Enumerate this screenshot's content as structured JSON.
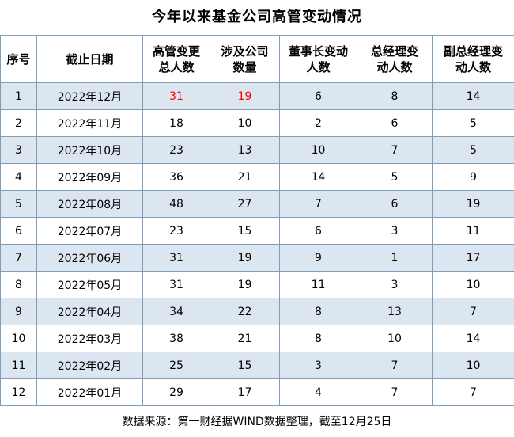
{
  "title": "今年以来基金公司高管变动情况",
  "table": {
    "columns": [
      {
        "lines": [
          "序号"
        ]
      },
      {
        "lines": [
          "截止日期"
        ]
      },
      {
        "lines": [
          "高管变更",
          "总人数"
        ]
      },
      {
        "lines": [
          "涉及公司",
          "数量"
        ]
      },
      {
        "lines": [
          "董事长变动",
          "人数"
        ]
      },
      {
        "lines": [
          "总经理变",
          "动人数"
        ]
      },
      {
        "lines": [
          "副总经理变",
          "动人数"
        ]
      }
    ],
    "rows": [
      [
        "1",
        "2022年12月",
        "31",
        "19",
        "6",
        "8",
        "14"
      ],
      [
        "2",
        "2022年11月",
        "18",
        "10",
        "2",
        "6",
        "5"
      ],
      [
        "3",
        "2022年10月",
        "23",
        "13",
        "10",
        "7",
        "5"
      ],
      [
        "4",
        "2022年09月",
        "36",
        "21",
        "14",
        "5",
        "9"
      ],
      [
        "5",
        "2022年08月",
        "48",
        "27",
        "7",
        "6",
        "19"
      ],
      [
        "6",
        "2022年07月",
        "23",
        "15",
        "6",
        "3",
        "11"
      ],
      [
        "7",
        "2022年06月",
        "31",
        "19",
        "9",
        "1",
        "17"
      ],
      [
        "8",
        "2022年05月",
        "31",
        "19",
        "11",
        "3",
        "10"
      ],
      [
        "9",
        "2022年04月",
        "34",
        "22",
        "8",
        "13",
        "7"
      ],
      [
        "10",
        "2022年03月",
        "38",
        "21",
        "8",
        "10",
        "14"
      ],
      [
        "11",
        "2022年02月",
        "25",
        "15",
        "3",
        "7",
        "10"
      ],
      [
        "12",
        "2022年01月",
        "29",
        "17",
        "4",
        "7",
        "7"
      ]
    ],
    "highlight_color": "#ff0000",
    "stripe_color": "#dce6f1",
    "border_color": "#7f9db9"
  },
  "source": "数据来源：第一财经据WIND数据整理，截至12月25日"
}
